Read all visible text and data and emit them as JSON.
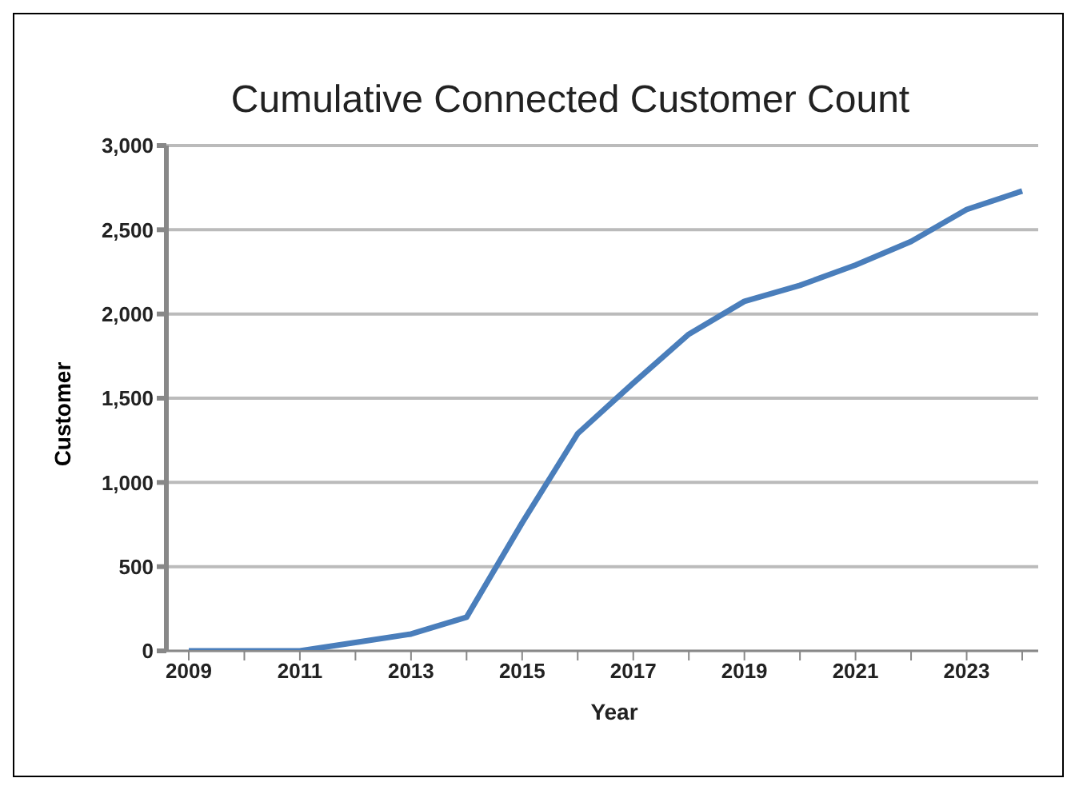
{
  "chart_data": {
    "type": "line",
    "title": "Cumulative Connected Customer Count",
    "xlabel": "Year",
    "ylabel": "Customer",
    "categories": [
      "2009",
      null,
      "2011",
      null,
      "2013",
      null,
      "2015",
      null,
      "2017",
      null,
      "2019",
      null,
      "2021",
      null,
      "2023",
      null
    ],
    "series": [
      {
        "color": "#4a7ebb",
        "values": [
          0,
          0,
          0,
          50,
          100,
          200,
          760,
          1290,
          1590,
          1880,
          2075,
          2170,
          2290,
          2430,
          2620,
          2730
        ]
      }
    ],
    "ylim": [
      0,
      3000
    ],
    "yticks": [
      {
        "value": 0,
        "label": "0"
      },
      {
        "value": 500,
        "label": "500"
      },
      {
        "value": 1000,
        "label": "1,000"
      },
      {
        "value": 1500,
        "label": "1,500"
      },
      {
        "value": 2000,
        "label": "2,000"
      },
      {
        "value": 2500,
        "label": "2,500"
      },
      {
        "value": 3000,
        "label": "3,000"
      }
    ],
    "grid": "y",
    "legend": false,
    "marker": "none",
    "line_style": "solid"
  }
}
